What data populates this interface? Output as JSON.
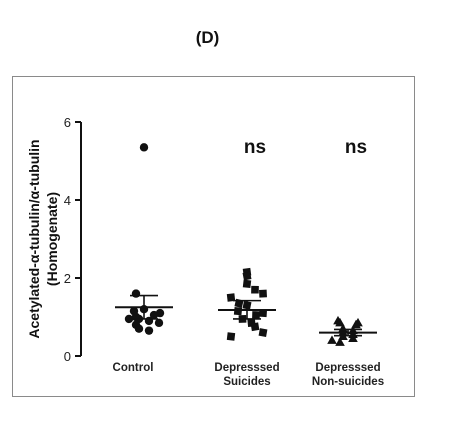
{
  "panel_label": "(D)",
  "chart_data": {
    "type": "scatter",
    "ylabel_line1": "Acetylated-α-tubulin/α-tubulin",
    "ylabel_line2": "(Homogenate)",
    "ylim": [
      0,
      6
    ],
    "yticks": [
      "0",
      "2",
      "4",
      "6"
    ],
    "grid": false,
    "categories": [
      {
        "label_lines": [
          "Control"
        ],
        "marker": "circle",
        "mean": 1.25,
        "sem_upper": 1.55,
        "sem_lower": 0.95,
        "annotation": "",
        "values": [
          5.35,
          1.6,
          1.2,
          1.15,
          1.1,
          1.05,
          1.0,
          0.95,
          0.95,
          0.9,
          0.85,
          0.8,
          0.7,
          0.65
        ]
      },
      {
        "label_lines": [
          "Depresssed",
          "Suicides"
        ],
        "marker": "square",
        "mean": 1.18,
        "sem_upper": 1.42,
        "sem_lower": 0.95,
        "annotation": "ns",
        "values": [
          2.15,
          2.05,
          1.85,
          1.7,
          1.6,
          1.5,
          1.35,
          1.3,
          1.15,
          1.1,
          1.05,
          0.95,
          0.85,
          0.75,
          0.6,
          0.5
        ]
      },
      {
        "label_lines": [
          "Depresssed",
          "Non-suicides"
        ],
        "marker": "triangle",
        "mean": 0.6,
        "sem_upper": 0.68,
        "sem_lower": 0.52,
        "annotation": "ns",
        "values": [
          0.9,
          0.85,
          0.85,
          0.8,
          0.7,
          0.65,
          0.6,
          0.55,
          0.5,
          0.45,
          0.4,
          0.35
        ]
      }
    ]
  }
}
